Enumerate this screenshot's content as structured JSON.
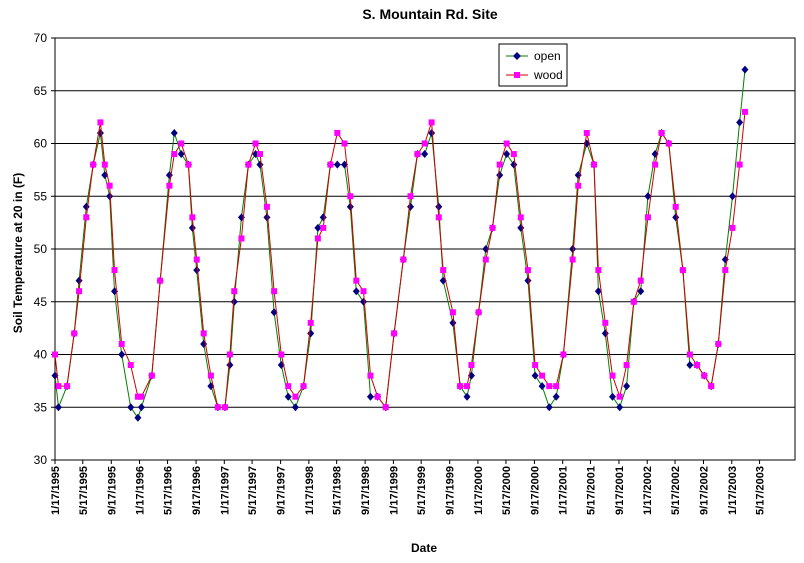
{
  "chart_data": {
    "type": "line",
    "title": "S. Mountain Rd. Site",
    "xlabel": "Date",
    "ylabel": "Soil Temperature at 20 in (F)",
    "ylim": [
      30,
      70
    ],
    "yticks": [
      30,
      35,
      40,
      45,
      50,
      55,
      60,
      65,
      70
    ],
    "xlim": [
      "1995-01-17",
      "2003-10-17"
    ],
    "xticks": [
      "1/17/1995",
      "5/17/1995",
      "9/17/1995",
      "1/17/1996",
      "5/17/1996",
      "9/17/1996",
      "1/17/1997",
      "5/17/1997",
      "9/17/1997",
      "1/17/1998",
      "5/17/1998",
      "9/17/1998",
      "1/17/1999",
      "5/17/1999",
      "9/17/1999",
      "1/17/2000",
      "5/17/2000",
      "9/17/2000",
      "1/17/2001",
      "5/17/2001",
      "9/17/2001",
      "1/17/2002",
      "5/17/2002",
      "9/17/2002",
      "1/17/2003",
      "5/17/2003"
    ],
    "grid": "horizontal",
    "legend_position": "top-right",
    "series": [
      {
        "name": "open",
        "color": "#000080",
        "line_color": "#008000",
        "marker": "diamond",
        "points": [
          [
            "1995-01-17",
            38
          ],
          [
            "1995-02-01",
            35
          ],
          [
            "1995-03-10",
            37
          ],
          [
            "1995-04-10",
            42
          ],
          [
            "1995-05-01",
            47
          ],
          [
            "1995-06-01",
            54
          ],
          [
            "1995-07-01",
            58
          ],
          [
            "1995-08-01",
            61
          ],
          [
            "1995-08-20",
            57
          ],
          [
            "1995-09-10",
            55
          ],
          [
            "1995-10-01",
            46
          ],
          [
            "1995-11-01",
            40
          ],
          [
            "1995-12-10",
            35
          ],
          [
            "1996-01-10",
            34
          ],
          [
            "1996-01-25",
            35
          ],
          [
            "1996-03-10",
            38
          ],
          [
            "1996-04-15",
            47
          ],
          [
            "1996-05-25",
            57
          ],
          [
            "1996-06-15",
            61
          ],
          [
            "1996-07-15",
            59
          ],
          [
            "1996-08-15",
            58
          ],
          [
            "1996-09-01",
            52
          ],
          [
            "1996-09-20",
            48
          ],
          [
            "1996-10-20",
            41
          ],
          [
            "1996-11-20",
            37
          ],
          [
            "1996-12-20",
            35
          ],
          [
            "1997-01-20",
            35
          ],
          [
            "1997-02-10",
            39
          ],
          [
            "1997-03-01",
            45
          ],
          [
            "1997-04-01",
            53
          ],
          [
            "1997-05-01",
            58
          ],
          [
            "1997-06-01",
            59
          ],
          [
            "1997-06-20",
            58
          ],
          [
            "1997-07-20",
            53
          ],
          [
            "1997-08-20",
            44
          ],
          [
            "1997-09-20",
            39
          ],
          [
            "1997-10-20",
            36
          ],
          [
            "1997-11-20",
            35
          ],
          [
            "1997-12-25",
            37
          ],
          [
            "1998-01-25",
            42
          ],
          [
            "1998-02-25",
            52
          ],
          [
            "1998-03-20",
            53
          ],
          [
            "1998-04-20",
            58
          ],
          [
            "1998-05-20",
            58
          ],
          [
            "1998-06-20",
            58
          ],
          [
            "1998-07-15",
            54
          ],
          [
            "1998-08-10",
            46
          ],
          [
            "1998-09-10",
            45
          ],
          [
            "1998-10-10",
            36
          ],
          [
            "1998-11-10",
            36
          ],
          [
            "1998-12-15",
            35
          ],
          [
            "1999-01-20",
            42
          ],
          [
            "1999-03-01",
            49
          ],
          [
            "1999-04-01",
            54
          ],
          [
            "1999-05-01",
            59
          ],
          [
            "1999-06-01",
            59
          ],
          [
            "1999-07-01",
            61
          ],
          [
            "1999-08-01",
            54
          ],
          [
            "1999-08-20",
            47
          ],
          [
            "1999-10-01",
            43
          ],
          [
            "1999-11-01",
            37
          ],
          [
            "1999-12-01",
            36
          ],
          [
            "1999-12-20",
            38
          ],
          [
            "2000-01-20",
            44
          ],
          [
            "2000-02-20",
            50
          ],
          [
            "2000-03-20",
            52
          ],
          [
            "2000-04-20",
            57
          ],
          [
            "2000-05-20",
            59
          ],
          [
            "2000-06-20",
            58
          ],
          [
            "2000-07-20",
            52
          ],
          [
            "2000-08-20",
            47
          ],
          [
            "2000-09-20",
            38
          ],
          [
            "2000-10-20",
            37
          ],
          [
            "2000-11-20",
            35
          ],
          [
            "2000-12-20",
            36
          ],
          [
            "2001-01-20",
            40
          ],
          [
            "2001-03-01",
            50
          ],
          [
            "2001-03-25",
            57
          ],
          [
            "2001-05-01",
            60
          ],
          [
            "2001-06-01",
            58
          ],
          [
            "2001-06-20",
            46
          ],
          [
            "2001-07-20",
            42
          ],
          [
            "2001-08-20",
            36
          ],
          [
            "2001-09-20",
            35
          ],
          [
            "2001-10-20",
            37
          ],
          [
            "2001-11-20",
            45
          ],
          [
            "2001-12-20",
            46
          ],
          [
            "2002-01-20",
            55
          ],
          [
            "2002-02-20",
            59
          ],
          [
            "2002-03-20",
            61
          ],
          [
            "2002-04-20",
            60
          ],
          [
            "2002-05-20",
            53
          ],
          [
            "2002-06-20",
            48
          ],
          [
            "2002-07-20",
            39
          ],
          [
            "2002-08-20",
            39
          ],
          [
            "2002-09-20",
            38
          ],
          [
            "2002-10-20",
            37
          ],
          [
            "2002-11-20",
            41
          ],
          [
            "2002-12-20",
            49
          ],
          [
            "2003-01-20",
            55
          ],
          [
            "2003-02-20",
            62
          ],
          [
            "2003-03-15",
            67
          ]
        ]
      },
      {
        "name": "wood",
        "color": "#ff00ff",
        "line_color": "#cc0000",
        "marker": "square",
        "points": [
          [
            "1995-01-17",
            40
          ],
          [
            "1995-02-01",
            37
          ],
          [
            "1995-03-10",
            37
          ],
          [
            "1995-04-10",
            42
          ],
          [
            "1995-05-01",
            46
          ],
          [
            "1995-06-01",
            53
          ],
          [
            "1995-07-01",
            58
          ],
          [
            "1995-08-01",
            62
          ],
          [
            "1995-08-20",
            58
          ],
          [
            "1995-09-10",
            56
          ],
          [
            "1995-10-01",
            48
          ],
          [
            "1995-11-01",
            41
          ],
          [
            "1995-12-10",
            39
          ],
          [
            "1996-01-10",
            36
          ],
          [
            "1996-01-25",
            36
          ],
          [
            "1996-03-10",
            38
          ],
          [
            "1996-04-15",
            47
          ],
          [
            "1996-05-25",
            56
          ],
          [
            "1996-06-15",
            59
          ],
          [
            "1996-07-15",
            60
          ],
          [
            "1996-08-15",
            58
          ],
          [
            "1996-09-01",
            53
          ],
          [
            "1996-09-20",
            49
          ],
          [
            "1996-10-20",
            42
          ],
          [
            "1996-11-20",
            38
          ],
          [
            "1996-12-20",
            35
          ],
          [
            "1997-01-20",
            35
          ],
          [
            "1997-02-10",
            40
          ],
          [
            "1997-03-01",
            46
          ],
          [
            "1997-04-01",
            51
          ],
          [
            "1997-05-01",
            58
          ],
          [
            "1997-06-01",
            60
          ],
          [
            "1997-06-20",
            59
          ],
          [
            "1997-07-20",
            54
          ],
          [
            "1997-08-20",
            46
          ],
          [
            "1997-09-20",
            40
          ],
          [
            "1997-10-20",
            37
          ],
          [
            "1997-11-20",
            36
          ],
          [
            "1997-12-25",
            37
          ],
          [
            "1998-01-25",
            43
          ],
          [
            "1998-02-25",
            51
          ],
          [
            "1998-03-20",
            52
          ],
          [
            "1998-04-20",
            58
          ],
          [
            "1998-05-20",
            61
          ],
          [
            "1998-06-20",
            60
          ],
          [
            "1998-07-15",
            55
          ],
          [
            "1998-08-10",
            47
          ],
          [
            "1998-09-10",
            46
          ],
          [
            "1998-10-10",
            38
          ],
          [
            "1998-11-10",
            36
          ],
          [
            "1998-12-15",
            35
          ],
          [
            "1999-01-20",
            42
          ],
          [
            "1999-03-01",
            49
          ],
          [
            "1999-04-01",
            55
          ],
          [
            "1999-05-01",
            59
          ],
          [
            "1999-06-01",
            60
          ],
          [
            "1999-07-01",
            62
          ],
          [
            "1999-08-01",
            53
          ],
          [
            "1999-08-20",
            48
          ],
          [
            "1999-10-01",
            44
          ],
          [
            "1999-11-01",
            37
          ],
          [
            "1999-12-01",
            37
          ],
          [
            "1999-12-20",
            39
          ],
          [
            "2000-01-20",
            44
          ],
          [
            "2000-02-20",
            49
          ],
          [
            "2000-03-20",
            52
          ],
          [
            "2000-04-20",
            58
          ],
          [
            "2000-05-20",
            60
          ],
          [
            "2000-06-20",
            59
          ],
          [
            "2000-07-20",
            53
          ],
          [
            "2000-08-20",
            48
          ],
          [
            "2000-09-20",
            39
          ],
          [
            "2000-10-20",
            38
          ],
          [
            "2000-11-20",
            37
          ],
          [
            "2000-12-20",
            37
          ],
          [
            "2001-01-20",
            40
          ],
          [
            "2001-03-01",
            49
          ],
          [
            "2001-03-25",
            56
          ],
          [
            "2001-05-01",
            61
          ],
          [
            "2001-06-01",
            58
          ],
          [
            "2001-06-20",
            48
          ],
          [
            "2001-07-20",
            43
          ],
          [
            "2001-08-20",
            38
          ],
          [
            "2001-09-20",
            36
          ],
          [
            "2001-10-20",
            39
          ],
          [
            "2001-11-20",
            45
          ],
          [
            "2001-12-20",
            47
          ],
          [
            "2002-01-20",
            53
          ],
          [
            "2002-02-20",
            58
          ],
          [
            "2002-03-20",
            61
          ],
          [
            "2002-04-20",
            60
          ],
          [
            "2002-05-20",
            54
          ],
          [
            "2002-06-20",
            48
          ],
          [
            "2002-07-20",
            40
          ],
          [
            "2002-08-20",
            39
          ],
          [
            "2002-09-20",
            38
          ],
          [
            "2002-10-20",
            37
          ],
          [
            "2002-11-20",
            41
          ],
          [
            "2002-12-20",
            48
          ],
          [
            "2003-01-20",
            52
          ],
          [
            "2003-02-20",
            58
          ],
          [
            "2003-03-15",
            63
          ]
        ]
      }
    ]
  }
}
